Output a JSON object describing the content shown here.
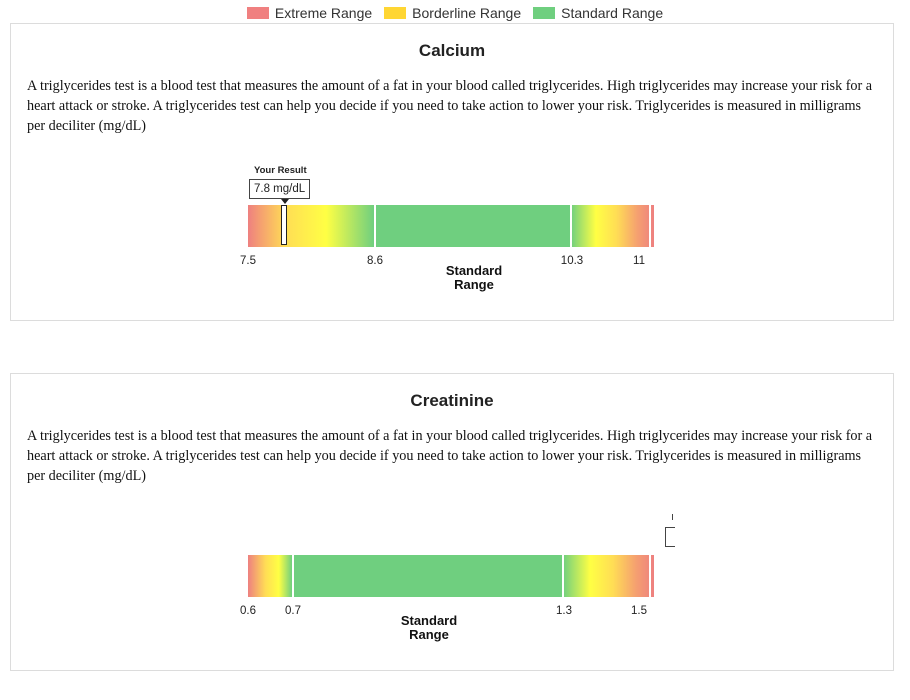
{
  "legend": {
    "items": [
      {
        "label": "Extreme Range",
        "color": "#f08080"
      },
      {
        "label": "Borderline Range",
        "color": "#ffd633"
      },
      {
        "label": "Standard Range",
        "color": "#6fcf7f"
      }
    ]
  },
  "colors": {
    "extreme": "#ee8080",
    "borderline": "#ffff44",
    "standard": "#6fcf7f"
  },
  "tests": [
    {
      "title": "Calcium",
      "description": "A triglycerides test is a blood test that measures the amount of a fat in your blood called triglycerides. High triglycerides may increase your risk for a heart attack or stroke. A triglycerides test can help you decide if you need to take action to lower your risk. Triglycerides is measured in milligrams per deciliter (mg/dL)",
      "your_result_label": "Your Result",
      "result_value": 7.8,
      "result_display": "7.8 mg/dL",
      "scale_min": 7.5,
      "scale_max": 11.1,
      "standard_low": 8.6,
      "standard_high": 10.3,
      "ticks": [
        "7.5",
        "8.6",
        "10.3",
        "11"
      ],
      "standard_label": "Standard Range"
    },
    {
      "title": "Creatinine",
      "description": "A triglycerides test is a blood test that measures the amount of a fat in your blood called triglycerides. High triglycerides may increase your risk for a heart attack or stroke. A triglycerides test can help you decide if you need to take action to lower your risk. Triglycerides is measured in milligrams per deciliter (mg/dL)",
      "ticks": [
        "0.6",
        "0.7",
        "1.3",
        "1.5"
      ],
      "standard_label": "Standard Range"
    }
  ]
}
